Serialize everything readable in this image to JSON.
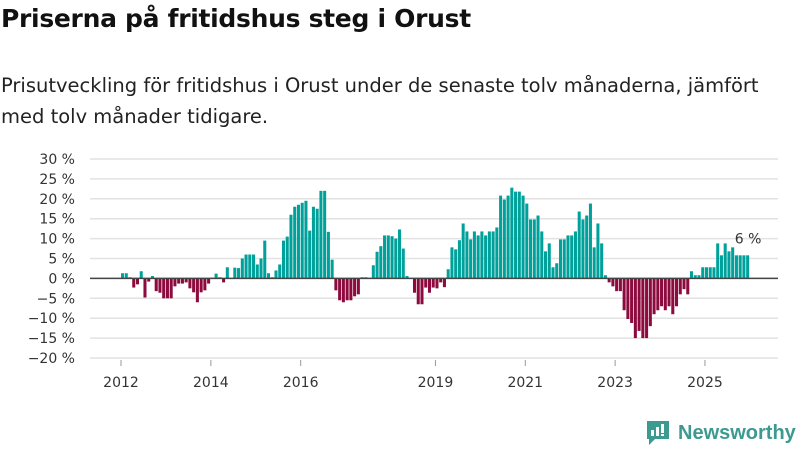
{
  "header": {
    "title": "Priserna på fritidshus steg i Orust",
    "subtitle": "Prisutveckling för fritidshus i Orust under de senaste tolv månaderna, jämfört med tolv månader tidigare."
  },
  "brand": {
    "name": "Newsworthy",
    "color": "#3c9a91"
  },
  "chart_data": {
    "type": "bar",
    "title": "Priserna på fritidshus steg i Orust",
    "xlabel": "",
    "ylabel": "",
    "start_month": "2012-01",
    "frequency": "monthly",
    "ylim": [
      -20,
      30
    ],
    "yticks": [
      30,
      25,
      20,
      15,
      10,
      5,
      0,
      -5,
      -10,
      -15,
      -20
    ],
    "ytick_labels": [
      "30 %",
      "25 %",
      "20 %",
      "15 %",
      "10 %",
      "5 %",
      "0 %",
      "−5 %",
      "−10 %",
      "−15 %",
      "−20 %"
    ],
    "xticks": [
      2012,
      2014,
      2016,
      2019,
      2021,
      2023,
      2025
    ],
    "xtick_labels": [
      "2012",
      "2014",
      "2016",
      "2019",
      "2021",
      "2023",
      "2025"
    ],
    "grid": true,
    "positive_color": "#00a19a",
    "negative_color": "#8c0a3d",
    "last_value_label": "6 %",
    "values": [
      1.3,
      1.3,
      0.3,
      -2.3,
      -1.5,
      1.8,
      -4.8,
      -0.8,
      0.6,
      -3.2,
      -3.6,
      -5,
      -5,
      -5,
      -2,
      -1.3,
      -1.3,
      -1,
      -2.5,
      -3.5,
      -6,
      -3.5,
      -3,
      -1.3,
      0.2,
      1.2,
      0.3,
      -1,
      2.8,
      0,
      2.7,
      2.6,
      5,
      6,
      6,
      6,
      3.5,
      5,
      9.5,
      1.3,
      0.3,
      2,
      3.5,
      9.5,
      10.5,
      16,
      18,
      18.5,
      19,
      19.5,
      12,
      18,
      17.5,
      22,
      22,
      11.7,
      4.7,
      -3,
      -5.5,
      -6,
      -5.5,
      -5.5,
      -4.5,
      -4,
      0.3,
      0.3,
      0,
      3.3,
      6.7,
      8.1,
      10.8,
      10.8,
      10.6,
      10,
      12.3,
      7.5,
      0.6,
      0,
      -3.6,
      -6.5,
      -6.5,
      -2.3,
      -3.6,
      -2.3,
      -2.5,
      -1,
      -2.2,
      2.3,
      7.8,
      7.3,
      9.6,
      13.8,
      11.8,
      9.8,
      11.8,
      10.8,
      11.8,
      10.8,
      11.8,
      11.8,
      12.8,
      20.8,
      19.8,
      20.8,
      22.8,
      21.8,
      21.8,
      20.8,
      18.8,
      14.8,
      14.8,
      15.8,
      11.8,
      6.8,
      8.8,
      2.8,
      3.8,
      9.8,
      9.8,
      10.8,
      10.8,
      11.8,
      16.8,
      14.8,
      15.8,
      18.8,
      7.8,
      13.8,
      8.8,
      0.8,
      -1,
      -2,
      -3.2,
      -3.2,
      -8,
      -10.2,
      -11.2,
      -15,
      -13.2,
      -15,
      -15,
      -12,
      -9,
      -8,
      -7,
      -8,
      -7,
      -9,
      -7,
      -4,
      -2.7,
      -4,
      1.8,
      0.8,
      0.8,
      2.8,
      2.8,
      2.8,
      2.8,
      8.8,
      5.8,
      8.8,
      6.8,
      7.8,
      5.8,
      5.8,
      5.8,
      5.8
    ]
  }
}
